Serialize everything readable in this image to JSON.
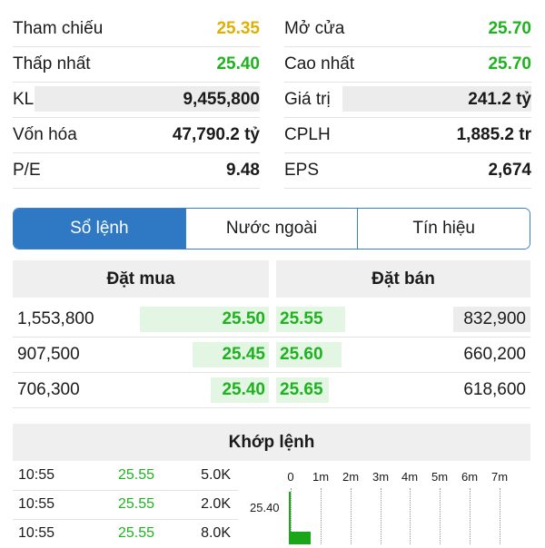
{
  "stats": {
    "left": [
      {
        "label": "Tham chiếu",
        "value": "25.35",
        "color": "#e0b000"
      },
      {
        "label": "Thấp nhất",
        "value": "25.40",
        "color": "#1fb21f"
      },
      {
        "label": "KL",
        "value": "9,455,800",
        "color": "#1a1a1a"
      },
      {
        "label": "Vốn hóa",
        "value": "47,790.2 tỷ",
        "color": "#1a1a1a"
      },
      {
        "label": "P/E",
        "value": "9.48",
        "color": "#1a1a1a"
      }
    ],
    "right": [
      {
        "label": "Mở cửa",
        "value": "25.70",
        "color": "#1fb21f"
      },
      {
        "label": "Cao nhất",
        "value": "25.70",
        "color": "#1fb21f"
      },
      {
        "label": "Giá trị",
        "value": "241.2 tỷ",
        "color": "#1a1a1a"
      },
      {
        "label": "CPLH",
        "value": "1,885.2 tr",
        "color": "#1a1a1a"
      },
      {
        "label": "EPS",
        "value": "2,674",
        "color": "#1a1a1a"
      }
    ]
  },
  "tabs": [
    {
      "label": "Sổ lệnh",
      "active": true
    },
    {
      "label": "Nước ngoài",
      "active": false
    },
    {
      "label": "Tín hiệu",
      "active": false
    }
  ],
  "orderbook": {
    "buy_title": "Đặt mua",
    "sell_title": "Đặt bán",
    "rows": [
      {
        "buy_volume": "1,553,800",
        "buy_price": "25.50",
        "sell_price": "25.55",
        "sell_volume": "832,900"
      },
      {
        "buy_volume": "907,500",
        "buy_price": "25.45",
        "sell_price": "25.60",
        "sell_volume": "660,200"
      },
      {
        "buy_volume": "706,300",
        "buy_price": "25.40",
        "sell_price": "25.65",
        "sell_volume": "618,600"
      }
    ]
  },
  "matching": {
    "title": "Khớp lệnh",
    "rows": [
      {
        "time": "10:55",
        "price": "25.55",
        "volume": "5.0K"
      },
      {
        "time": "10:55",
        "price": "25.55",
        "volume": "2.0K"
      },
      {
        "time": "10:55",
        "price": "25.55",
        "volume": "8.0K"
      }
    ],
    "chart_ticks": [
      "0",
      "1m",
      "2m",
      "3m",
      "4m",
      "5m",
      "6m",
      "7m"
    ],
    "chart_price_label": "25.40",
    "price_color": "#1fb21f"
  }
}
